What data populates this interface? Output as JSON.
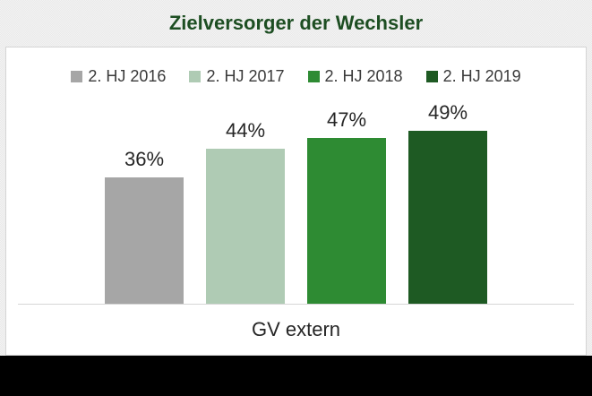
{
  "title": "Zielversorger der Wechsler",
  "colors": {
    "title_text": "#1D4E22",
    "slide_background": "#EFEFEF",
    "panel_background": "#FFFFFF",
    "panel_border": "#D4D4D4",
    "axis_line": "#D6D6D6",
    "label_text": "#262626",
    "footer_bar": "#000000"
  },
  "chart_data": {
    "type": "bar",
    "title": "Zielversorger der Wechsler",
    "categories": [
      "GV extern"
    ],
    "series": [
      {
        "name": "2. HJ 2016",
        "values": [
          36
        ],
        "data_label": "36%",
        "color": "#A6A6A6"
      },
      {
        "name": "2. HJ 2017",
        "values": [
          44
        ],
        "data_label": "44%",
        "color": "#AFCBB4"
      },
      {
        "name": "2. HJ 2018",
        "values": [
          47
        ],
        "data_label": "47%",
        "color": "#2E8B33"
      },
      {
        "name": "2. HJ 2019",
        "values": [
          49
        ],
        "data_label": "49%",
        "color": "#1E5A23"
      }
    ],
    "xlabel": "GV extern",
    "ylabel": "",
    "ylim": [
      0,
      74
    ],
    "grid": false,
    "y_axis_visible": false,
    "legend_position": "top",
    "data_labels_visible": true
  },
  "footer": {
    "text": ""
  }
}
